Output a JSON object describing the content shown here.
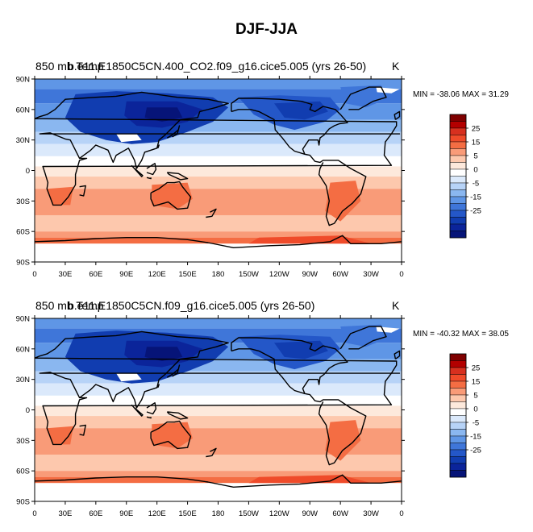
{
  "figure": {
    "title": "DJF-JJA"
  },
  "panels": [
    {
      "left_string": "850 mb Temp",
      "case_string": "b.e11.E1850C5CN.400_CO2.f09_g16.cice5.005 (yrs 26-50)",
      "units": "K",
      "minmax": "MIN = -38.06 MAX =  31.29"
    },
    {
      "left_string": "850 mb Temp",
      "case_string": "b.e11.E1850C5CN.f09_g16.cice5.005 (yrs 26-50)",
      "units": "K",
      "minmax": "MIN = -40.32 MAX =  38.05"
    }
  ],
  "axes": {
    "lat_ticks": [
      "90N",
      "60N",
      "30N",
      "0",
      "30S",
      "60S",
      "90S"
    ],
    "lon_ticks": [
      "0",
      "30E",
      "60E",
      "90E",
      "120E",
      "150E",
      "180",
      "150W",
      "120W",
      "90W",
      "60W",
      "30W",
      "0"
    ]
  },
  "colorbar": {
    "labels": [
      "25",
      "15",
      "5",
      "0",
      "-5",
      "-15",
      "-25"
    ],
    "colors": [
      "#7f0000",
      "#b30000",
      "#d7301f",
      "#ef4b2a",
      "#f46d43",
      "#f99b78",
      "#fdc8ad",
      "#fde9dc",
      "#ffffff",
      "#dbe9fb",
      "#b7d3f7",
      "#8ab7f0",
      "#5f96e6",
      "#3f76d9",
      "#2457c8",
      "#113db0",
      "#0b249a",
      "#061478"
    ]
  }
}
